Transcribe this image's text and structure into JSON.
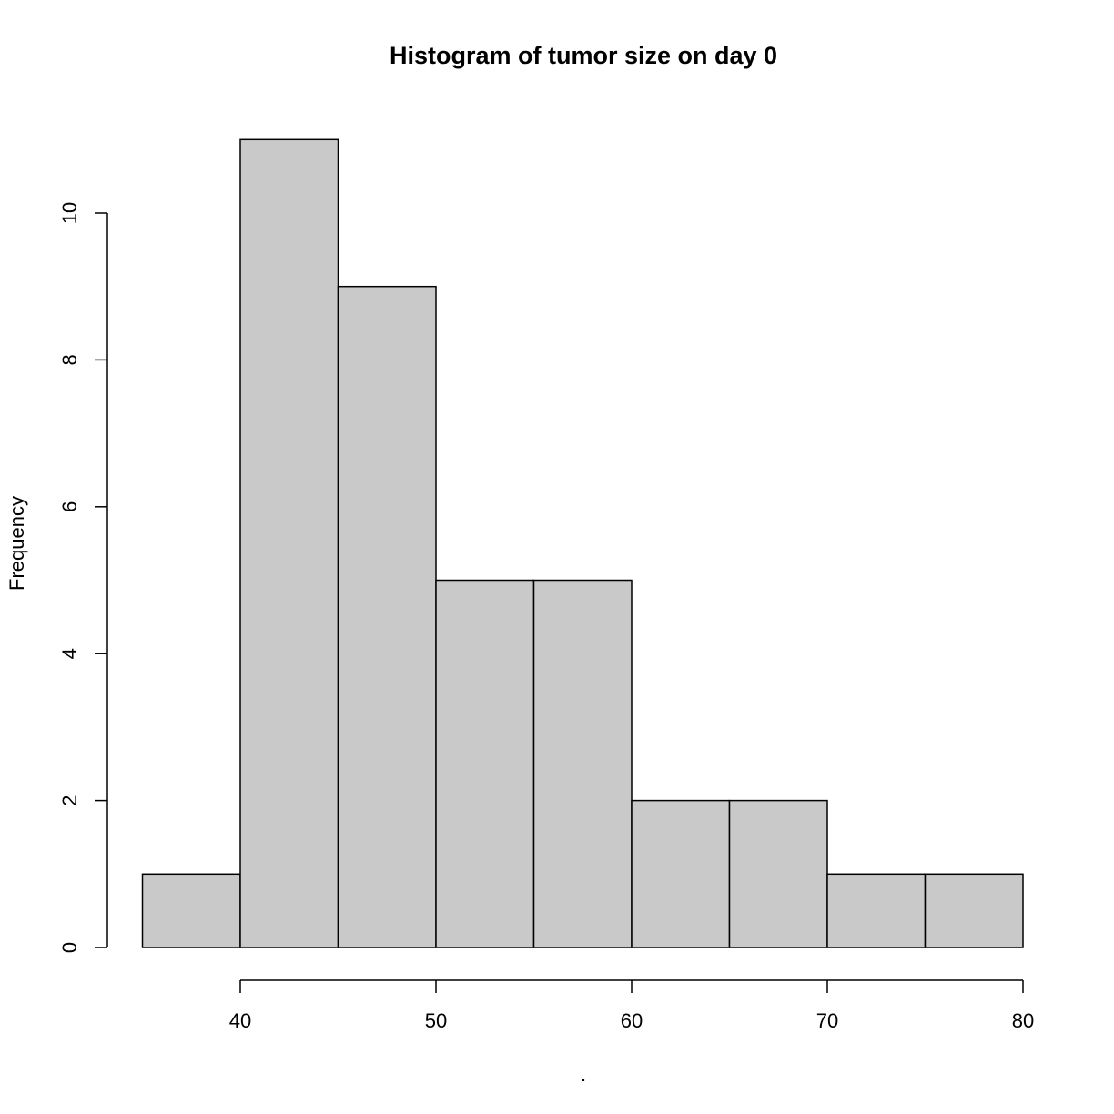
{
  "chart_data": {
    "type": "bar",
    "subtype": "histogram",
    "title": "Histogram of tumor size on day 0",
    "xlabel": ".",
    "ylabel": "Frequency",
    "bins": [
      {
        "from": 35,
        "to": 40,
        "count": 1
      },
      {
        "from": 40,
        "to": 45,
        "count": 11
      },
      {
        "from": 45,
        "to": 50,
        "count": 9
      },
      {
        "from": 50,
        "to": 55,
        "count": 5
      },
      {
        "from": 55,
        "to": 60,
        "count": 5
      },
      {
        "from": 60,
        "to": 65,
        "count": 2
      },
      {
        "from": 65,
        "to": 70,
        "count": 2
      },
      {
        "from": 70,
        "to": 75,
        "count": 1
      },
      {
        "from": 75,
        "to": 80,
        "count": 1
      }
    ],
    "xlim": [
      35,
      80
    ],
    "ylim": [
      0,
      11
    ],
    "x_ticks": [
      "40",
      "50",
      "60",
      "70",
      "80"
    ],
    "y_ticks": [
      "0",
      "2",
      "4",
      "6",
      "8",
      "10"
    ],
    "grid": false,
    "bar_color": "#c9c9c9",
    "edge_color": "#000000"
  }
}
